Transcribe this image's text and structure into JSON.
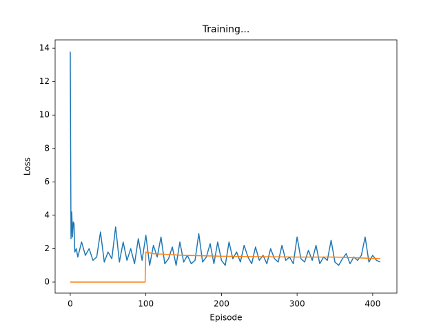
{
  "chart_data": {
    "type": "line",
    "title": "Training...",
    "xlabel": "Episode",
    "ylabel": "Loss",
    "xlim": [
      -20,
      432
    ],
    "ylim": [
      -0.66,
      14.5
    ],
    "xticks": [
      0,
      100,
      200,
      300,
      400
    ],
    "yticks": [
      0,
      2,
      4,
      6,
      8,
      10,
      12,
      14
    ],
    "series": [
      {
        "color": "#1f77b4",
        "x": [
          0,
          1,
          2,
          3,
          4,
          5,
          6,
          8,
          10,
          15,
          20,
          25,
          30,
          35,
          40,
          45,
          50,
          55,
          60,
          65,
          70,
          75,
          80,
          85,
          90,
          95,
          100,
          105,
          110,
          115,
          120,
          125,
          130,
          135,
          140,
          145,
          150,
          155,
          160,
          165,
          170,
          175,
          180,
          185,
          190,
          195,
          200,
          205,
          210,
          215,
          220,
          225,
          230,
          235,
          240,
          245,
          250,
          255,
          260,
          265,
          270,
          275,
          280,
          285,
          290,
          295,
          300,
          305,
          310,
          315,
          320,
          325,
          330,
          335,
          340,
          345,
          350,
          355,
          360,
          365,
          370,
          375,
          380,
          385,
          390,
          395,
          400,
          405,
          410
        ],
        "values": [
          13.8,
          2.6,
          4.2,
          2.7,
          3.6,
          3.5,
          1.8,
          2.0,
          1.5,
          2.4,
          1.6,
          2.0,
          1.3,
          1.5,
          3.0,
          1.2,
          1.8,
          1.4,
          3.3,
          1.2,
          2.4,
          1.3,
          2.0,
          1.1,
          2.6,
          1.3,
          2.8,
          1.0,
          2.2,
          1.5,
          2.7,
          1.1,
          1.4,
          2.1,
          1.0,
          2.4,
          1.2,
          1.6,
          1.1,
          1.3,
          2.9,
          1.2,
          1.5,
          2.3,
          1.1,
          2.4,
          1.3,
          1.0,
          2.4,
          1.4,
          1.8,
          1.2,
          2.2,
          1.5,
          1.1,
          2.1,
          1.3,
          1.6,
          1.1,
          2.0,
          1.4,
          1.2,
          2.2,
          1.3,
          1.5,
          1.1,
          2.7,
          1.4,
          1.2,
          1.9,
          1.3,
          2.2,
          1.1,
          1.5,
          1.3,
          2.5,
          1.2,
          1.0,
          1.4,
          1.7,
          1.1,
          1.5,
          1.3,
          1.6,
          2.7,
          1.2,
          1.6,
          1.3,
          1.2
        ]
      },
      {
        "color": "#ff7f0e",
        "x": [
          0,
          99,
          100,
          110,
          130,
          150,
          170,
          200,
          250,
          300,
          350,
          380,
          410
        ],
        "values": [
          0,
          0,
          1.8,
          1.7,
          1.65,
          1.6,
          1.58,
          1.55,
          1.52,
          1.5,
          1.5,
          1.45,
          1.4
        ]
      }
    ]
  }
}
